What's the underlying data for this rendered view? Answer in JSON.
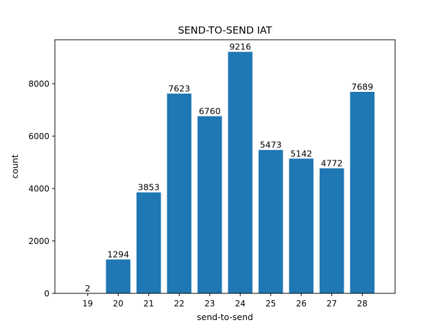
{
  "chart_data": {
    "type": "bar",
    "title": "SEND-TO-SEND IAT",
    "xlabel": "send-to-send",
    "ylabel": "count",
    "categories": [
      "19",
      "20",
      "21",
      "22",
      "23",
      "24",
      "25",
      "26",
      "27",
      "28"
    ],
    "values": [
      2,
      1294,
      3853,
      7623,
      6760,
      9216,
      5473,
      5142,
      4772,
      7689
    ],
    "data_labels": [
      "2",
      "1294",
      "3853",
      "7623",
      "6760",
      "9216",
      "5473",
      "5142",
      "4772",
      "7689"
    ],
    "yticks": [
      0,
      2000,
      4000,
      6000,
      8000
    ],
    "ytick_labels": [
      "0",
      "2000",
      "4000",
      "6000",
      "8000"
    ],
    "ylim": [
      0,
      9677
    ],
    "bar_color": "#1f77b4",
    "grid": false,
    "legend": "none"
  }
}
